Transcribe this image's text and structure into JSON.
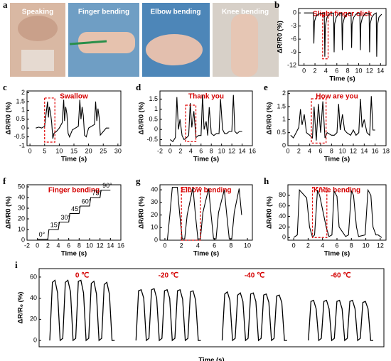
{
  "photos": {
    "label": "a",
    "captions": [
      "Speaking",
      "Finger bending",
      "Elbow bending",
      "Knee bending"
    ]
  },
  "chart_data": [
    {
      "type": "line",
      "label": "b",
      "title": "Slight finger click",
      "xlabel": "Time (s)",
      "ylabel": "ΔR/R0 (%)",
      "x": [
        0,
        1.7,
        1.8,
        1.9,
        2.2,
        2.6,
        3.7,
        3.8,
        3.9,
        4.2,
        4.6,
        5.4,
        5.5,
        5.6,
        5.9,
        6.3,
        6.9,
        7.0,
        7.1,
        7.4,
        7.8,
        8.6,
        8.7,
        8.8,
        9.1,
        9.5,
        10.2,
        10.3,
        10.4,
        10.7,
        11.1,
        11.9,
        12.0,
        12.1,
        12.4,
        12.8,
        13.2,
        13.3,
        13.4,
        13.7,
        14.2
      ],
      "series": [
        {
          "color": "#000000",
          "values": [
            0,
            0,
            -7,
            -2,
            -0.8,
            -0.3,
            0,
            -10,
            -3,
            -1,
            -0.3,
            0,
            -9,
            -2.5,
            -1,
            -0.3,
            0,
            -8.5,
            -2.5,
            -1,
            -0.3,
            0,
            -8,
            -2.5,
            -1,
            -0.3,
            0,
            -8.5,
            -2.5,
            -1,
            -0.3,
            0,
            -9,
            -2.5,
            -1,
            -0.3,
            0,
            -10,
            -3,
            -1,
            -0.3
          ]
        }
      ],
      "xlim": [
        -1,
        15
      ],
      "ylim": [
        -12,
        1
      ],
      "xticks": [
        0,
        2,
        4,
        6,
        8,
        10,
        12,
        14
      ],
      "yticks": [
        0,
        -3,
        -6,
        -9,
        -12
      ],
      "highlight": {
        "x": [
          3.4,
          4.4
        ],
        "y": [
          -10.5,
          -0.5
        ]
      }
    },
    {
      "type": "line",
      "label": "c",
      "title": "Swallow",
      "xlabel": "Time (s)",
      "ylabel": "ΔR/R0 (%)",
      "x": [
        2,
        3,
        4,
        5,
        5.5,
        6,
        6.3,
        6.6,
        7,
        7.4,
        7.8,
        8.2,
        9,
        10,
        11,
        11.5,
        11.8,
        12.2,
        12.6,
        13,
        13.5,
        14.5,
        15.5,
        16.5,
        17,
        17.4,
        17.8,
        18.2,
        18.6,
        19.2,
        20,
        21,
        22,
        22.4,
        22.8,
        23.2,
        23.6,
        24,
        25,
        26,
        27
      ],
      "series": [
        {
          "color": "#000000",
          "values": [
            0,
            0.05,
            0,
            0.1,
            0.8,
            1.5,
            0.6,
            1.2,
            0.9,
            0.3,
            -0.6,
            -0.3,
            -0.2,
            0,
            0.3,
            1.6,
            0.4,
            1.2,
            0.8,
            -0.3,
            -0.5,
            -0.1,
            0,
            0.1,
            1.6,
            0.5,
            1.2,
            0.7,
            -0.4,
            -0.5,
            0,
            0.1,
            0.2,
            1.5,
            0.4,
            1.1,
            0.6,
            -0.4,
            -0.2,
            0,
            0
          ]
        }
      ],
      "xlim": [
        -1,
        31
      ],
      "ylim": [
        -1,
        2.1
      ],
      "xticks": [
        0,
        5,
        10,
        15,
        20,
        25,
        30
      ],
      "yticks": [
        -1,
        -0.5,
        0,
        0.5,
        1,
        1.5,
        2
      ],
      "highlight": {
        "x": [
          5,
          8.5
        ],
        "y": [
          -0.8,
          1.7
        ]
      }
    },
    {
      "type": "line",
      "label": "d",
      "title": "Thank you",
      "xlabel": "Time (s)",
      "ylabel": "ΔR/R0 (%)",
      "x": [
        0,
        0.5,
        1,
        1.3,
        1.6,
        1.9,
        2.3,
        2.7,
        3.2,
        3.6,
        3.9,
        4.2,
        4.6,
        5,
        5.5,
        6,
        6.3,
        6.6,
        7,
        7.3,
        7.6,
        8,
        8.5,
        9,
        9.5,
        9.8,
        10.2,
        10.6,
        11,
        11.5,
        12,
        12.3,
        12.6,
        13,
        13.5,
        14
      ],
      "series": [
        {
          "color": "#000000",
          "values": [
            -0.5,
            -0.6,
            -0.4,
            1.6,
            0,
            0.5,
            -0.3,
            -0.5,
            -0.4,
            -0.3,
            1.3,
            0.1,
            0.9,
            -0.4,
            -0.3,
            -0.3,
            1.7,
            0,
            0.4,
            -0.3,
            1.1,
            -0.2,
            -0.3,
            -0.2,
            -0.2,
            1.5,
            0,
            -0.2,
            -0.2,
            -0.1,
            -0.1,
            1.7,
            -0.1,
            -0.2,
            -0.1,
            -0.1
          ]
        }
      ],
      "xlim": [
        -2,
        16
      ],
      "ylim": [
        -0.8,
        1.9
      ],
      "xticks": [
        -2,
        0,
        2,
        4,
        6,
        8,
        10,
        12,
        14,
        16
      ],
      "yticks": [
        -0.5,
        0,
        0.5,
        1,
        1.5
      ],
      "highlight": {
        "x": [
          3,
          5
        ],
        "y": [
          -0.6,
          1.2
        ]
      }
    },
    {
      "type": "line",
      "label": "e",
      "title": "How are you",
      "xlabel": "Time (s)",
      "ylabel": "ΔR/R0 (%)",
      "x": [
        0.5,
        1,
        1.5,
        2,
        2.3,
        2.6,
        3,
        3.4,
        4,
        4.5,
        4.8,
        5.2,
        5.6,
        6,
        6.4,
        6.8,
        7.2,
        8,
        8.5,
        9,
        9.3,
        9.6,
        10,
        10.4,
        10.8,
        11.5,
        12,
        12.5,
        13,
        13.3,
        13.6,
        14,
        14.5,
        15,
        15.3,
        15.6,
        16
      ],
      "series": [
        {
          "color": "#000000",
          "values": [
            0.4,
            0.3,
            0.5,
            0.7,
            1.4,
            0.8,
            1.2,
            0.5,
            0.4,
            0.3,
            1.5,
            0.2,
            1.6,
            0.5,
            1.7,
            0.3,
            0.5,
            0.4,
            0.4,
            0.5,
            1.6,
            0.6,
            1.2,
            0.6,
            0.5,
            0.4,
            0.6,
            0.4,
            0.5,
            1.8,
            0.7,
            1.0,
            0.5,
            0.4,
            1.9,
            0.6,
            0.6
          ]
        }
      ],
      "xlim": [
        0,
        18
      ],
      "ylim": [
        0,
        2.1
      ],
      "xticks": [
        0,
        2,
        4,
        6,
        8,
        10,
        12,
        14,
        16,
        18
      ],
      "yticks": [
        0,
        0.5,
        1,
        1.5,
        2
      ],
      "highlight": {
        "x": [
          4.3,
          7
        ],
        "y": [
          0.1,
          1.8
        ]
      }
    },
    {
      "type": "line",
      "label": "f",
      "title": "Finger bending",
      "xlabel": "Time (s)",
      "ylabel": "ΔR/R0 (%)",
      "x": [
        0,
        2,
        2.2,
        4,
        4.2,
        6,
        6.2,
        8,
        8.2,
        10,
        10.2,
        12,
        12.2,
        14
      ],
      "series": [
        {
          "color": "#000000",
          "values": [
            1,
            1,
            10,
            10,
            17,
            17,
            25,
            25,
            32,
            32,
            40,
            40,
            47,
            47
          ]
        }
      ],
      "step_labels": [
        "0°",
        "15°",
        "30°",
        "45°",
        "60°",
        "75°",
        "90°"
      ],
      "xlim": [
        -2,
        16
      ],
      "ylim": [
        0,
        52
      ],
      "xticks": [
        -2,
        0,
        2,
        4,
        6,
        8,
        10,
        12,
        14,
        16
      ],
      "yticks": [
        0,
        10,
        20,
        30,
        40,
        50
      ]
    },
    {
      "type": "line",
      "label": "g",
      "title": "Elbow bending",
      "xlabel": "Time (s)",
      "ylabel": "ΔR/R0 (%)",
      "x": [
        0.3,
        0.6,
        0.9,
        1.5,
        1.8,
        2.1,
        2.4,
        2.7,
        3.4,
        3.7,
        4.0,
        4.3,
        4.6,
        5.3,
        5.6,
        5.9,
        6.2,
        6.5,
        7.2,
        7.5,
        7.8,
        8.1,
        8.4,
        9.0,
        9.3
      ],
      "series": [
        {
          "color": "#000000",
          "values": [
            0,
            20,
            42,
            42,
            20,
            1,
            1,
            20,
            42,
            20,
            1,
            1,
            22,
            41,
            20,
            1,
            1,
            22,
            40,
            20,
            1,
            1,
            22,
            41,
            20
          ]
        }
      ],
      "xlim": [
        -0.6,
        10.6
      ],
      "ylim": [
        0,
        44
      ],
      "xticks": [
        0,
        2,
        4,
        6,
        8,
        10
      ],
      "yticks": [
        0,
        10,
        20,
        30,
        40
      ],
      "highlight": {
        "x": [
          2,
          4.3
        ],
        "y": [
          0,
          42
        ]
      }
    },
    {
      "type": "line",
      "label": "h",
      "title": "Knee bending",
      "xlabel": "Time (s)",
      "ylabel": "ΔR/R0 (%)",
      "x": [
        0,
        0.5,
        0.8,
        1.8,
        2.2,
        2.6,
        2.9,
        3.3,
        3.6,
        4.5,
        4.9,
        5.3,
        5.6,
        6,
        6.3,
        7.2,
        7.6,
        8,
        8.3,
        8.7,
        9,
        9.9,
        10.3,
        10.7,
        11,
        11.4,
        11.7,
        12.2
      ],
      "series": [
        {
          "color": "#000000",
          "values": [
            0,
            5,
            90,
            75,
            20,
            1,
            5,
            90,
            80,
            20,
            2,
            5,
            88,
            78,
            20,
            2,
            5,
            88,
            80,
            20,
            2,
            5,
            90,
            80,
            20,
            5,
            5,
            0
          ]
        }
      ],
      "xlim": [
        -0.8,
        12.8
      ],
      "ylim": [
        -5,
        100
      ],
      "xticks": [
        0,
        2,
        4,
        6,
        8,
        10,
        12
      ],
      "yticks": [
        0,
        20,
        40,
        60,
        80
      ],
      "highlight": {
        "x": [
          2.6,
          4.6
        ],
        "y": [
          0,
          95
        ]
      }
    },
    {
      "type": "grouped-line",
      "label": "i",
      "xlabel": "Time (s)",
      "ylabel": "ΔR/R₀ (%)",
      "series": [
        {
          "name": "0 ℃",
          "color": "#000000",
          "values": [
            0,
            55,
            57,
            45,
            0,
            2,
            55,
            57,
            46,
            0,
            2,
            56,
            57,
            45,
            0,
            2,
            54,
            56,
            44,
            0,
            2,
            53,
            55,
            44,
            0,
            0
          ]
        },
        {
          "name": "-20 ℃",
          "color": "#000000",
          "values": [
            0,
            47,
            48,
            40,
            0,
            2,
            48,
            49,
            40,
            0,
            2,
            47,
            48,
            40,
            0,
            2,
            47,
            48,
            39,
            0,
            2,
            46,
            47,
            38,
            0,
            0
          ]
        },
        {
          "name": "-40 ℃",
          "color": "#000000",
          "values": [
            0,
            44,
            46,
            38,
            0,
            2,
            43,
            45,
            37,
            0,
            2,
            44,
            45,
            37,
            0,
            2,
            43,
            44,
            36,
            0,
            2,
            42,
            43,
            36,
            0,
            0
          ]
        },
        {
          "name": "-60 ℃",
          "color": "#000000",
          "values": [
            0,
            37,
            38,
            30,
            0,
            2,
            37,
            38,
            30,
            0,
            2,
            37,
            38,
            30,
            0,
            2,
            37,
            38,
            30,
            0,
            2,
            36,
            37,
            30,
            0,
            0
          ]
        }
      ],
      "ylim": [
        -6,
        68
      ],
      "yticks": [
        0,
        20,
        40,
        60
      ]
    }
  ]
}
